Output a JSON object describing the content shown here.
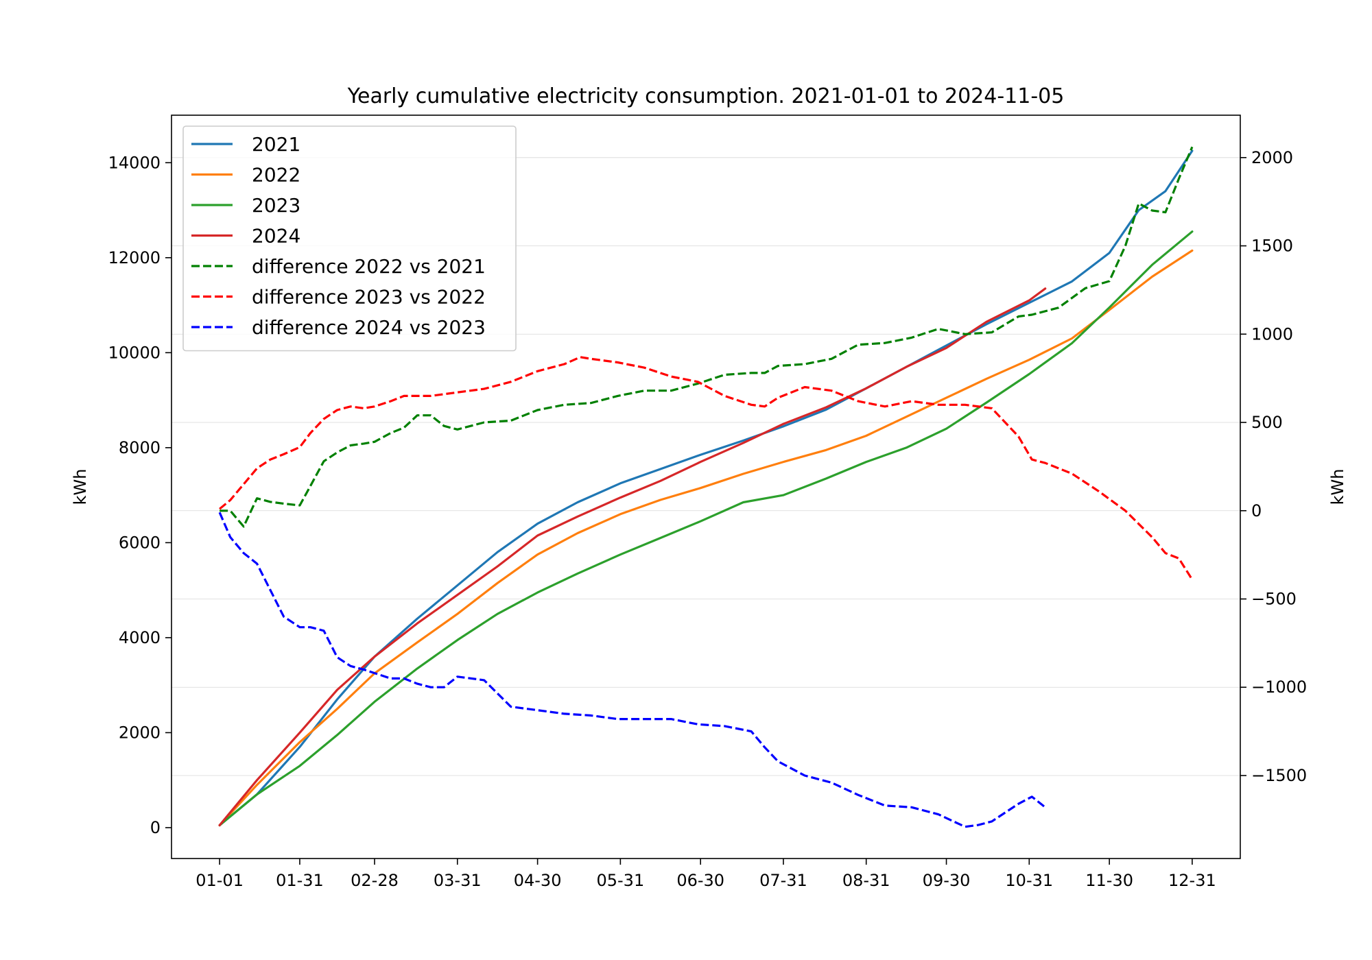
{
  "chart_data": {
    "type": "line",
    "title": "Yearly cumulative electricity consumption. 2021-01-01 to 2024-11-05",
    "xlabel": "",
    "ylabel_left": "kWh",
    "ylabel_right": "kWh",
    "x_unit": "day of year",
    "x_ticks": [
      {
        "label": "01-01",
        "day": 1
      },
      {
        "label": "01-31",
        "day": 31
      },
      {
        "label": "02-28",
        "day": 59
      },
      {
        "label": "03-31",
        "day": 90
      },
      {
        "label": "04-30",
        "day": 120
      },
      {
        "label": "05-31",
        "day": 151
      },
      {
        "label": "06-30",
        "day": 181
      },
      {
        "label": "07-31",
        "day": 212
      },
      {
        "label": "08-31",
        "day": 243
      },
      {
        "label": "09-30",
        "day": 273
      },
      {
        "label": "10-31",
        "day": 304
      },
      {
        "label": "11-30",
        "day": 334
      },
      {
        "label": "12-31",
        "day": 365
      }
    ],
    "xlim": [
      -17,
      383
    ],
    "ylim_left": [
      -650,
      15000
    ],
    "ylim_right": [
      -1970,
      2240
    ],
    "y_ticks_left": [
      0,
      2000,
      4000,
      6000,
      8000,
      10000,
      12000,
      14000
    ],
    "y_ticks_right": [
      -1500,
      -1000,
      -500,
      0,
      500,
      1000,
      1500,
      2000
    ],
    "y_tick_labels_right": [
      "−1500",
      "−1000",
      "−500",
      "0",
      "500",
      "1000",
      "1500",
      "2000"
    ],
    "grid": "horizontal lines at right-axis ticks",
    "legend_position": "upper-left",
    "series": [
      {
        "name": "2021",
        "axis": "left",
        "color": "#1f77b4",
        "style": "solid",
        "x": [
          1,
          15,
          31,
          45,
          59,
          75,
          90,
          105,
          120,
          135,
          151,
          166,
          181,
          197,
          212,
          228,
          243,
          258,
          273,
          288,
          304,
          320,
          334,
          345,
          355,
          365
        ],
        "y": [
          50,
          700,
          1700,
          2700,
          3600,
          4400,
          5100,
          5800,
          6400,
          6850,
          7250,
          7550,
          7850,
          8150,
          8450,
          8800,
          9250,
          9700,
          10150,
          10600,
          11050,
          11500,
          12100,
          13000,
          13400,
          14250
        ]
      },
      {
        "name": "2022",
        "axis": "left",
        "color": "#ff7f0e",
        "style": "solid",
        "x": [
          1,
          15,
          31,
          45,
          59,
          75,
          90,
          105,
          120,
          135,
          151,
          166,
          181,
          197,
          212,
          228,
          243,
          258,
          273,
          288,
          304,
          320,
          334,
          350,
          365
        ],
        "y": [
          50,
          900,
          1800,
          2500,
          3250,
          3900,
          4500,
          5150,
          5750,
          6200,
          6600,
          6900,
          7150,
          7450,
          7700,
          7950,
          8250,
          8650,
          9050,
          9450,
          9850,
          10300,
          10900,
          11600,
          12150
        ]
      },
      {
        "name": "2023",
        "axis": "left",
        "color": "#2ca02c",
        "style": "solid",
        "x": [
          1,
          15,
          31,
          45,
          59,
          75,
          90,
          105,
          120,
          135,
          151,
          166,
          181,
          197,
          212,
          228,
          243,
          258,
          273,
          288,
          304,
          320,
          334,
          350,
          365
        ],
        "y": [
          50,
          700,
          1300,
          1950,
          2650,
          3350,
          3950,
          4500,
          4950,
          5350,
          5750,
          6100,
          6450,
          6850,
          7000,
          7350,
          7700,
          8000,
          8400,
          8950,
          9550,
          10200,
          10950,
          11850,
          12550
        ]
      },
      {
        "name": "2024",
        "axis": "left",
        "color": "#d62728",
        "style": "solid",
        "x": [
          1,
          15,
          31,
          45,
          59,
          75,
          90,
          105,
          120,
          135,
          151,
          166,
          181,
          197,
          212,
          228,
          243,
          258,
          273,
          288,
          304,
          310
        ],
        "y": [
          50,
          1000,
          2000,
          2900,
          3600,
          4300,
          4900,
          5500,
          6150,
          6550,
          6950,
          7300,
          7700,
          8100,
          8500,
          8850,
          9250,
          9700,
          10100,
          10650,
          11100,
          11350
        ]
      },
      {
        "name": "difference 2022 vs 2021",
        "axis": "right",
        "color": "#008000",
        "style": "dashed",
        "x": [
          1,
          5,
          10,
          15,
          20,
          25,
          31,
          35,
          40,
          45,
          50,
          55,
          59,
          65,
          70,
          75,
          80,
          85,
          90,
          100,
          110,
          120,
          130,
          140,
          150,
          160,
          170,
          180,
          190,
          200,
          205,
          210,
          220,
          230,
          240,
          250,
          260,
          270,
          280,
          290,
          300,
          305,
          315,
          325,
          334,
          340,
          345,
          350,
          355,
          360,
          365
        ],
        "y": [
          0,
          0,
          -90,
          70,
          50,
          40,
          30,
          140,
          280,
          330,
          370,
          380,
          390,
          440,
          470,
          540,
          540,
          480,
          460,
          500,
          510,
          570,
          600,
          610,
          650,
          680,
          680,
          720,
          770,
          780,
          780,
          820,
          830,
          860,
          940,
          950,
          980,
          1030,
          1000,
          1010,
          1100,
          1110,
          1150,
          1260,
          1300,
          1500,
          1740,
          1700,
          1690,
          1880,
          2060
        ]
      },
      {
        "name": "difference 2023 vs 2022",
        "axis": "right",
        "color": "#ff0000",
        "style": "dashed",
        "x": [
          1,
          5,
          10,
          15,
          20,
          25,
          31,
          35,
          40,
          45,
          50,
          55,
          59,
          65,
          70,
          80,
          90,
          100,
          110,
          120,
          130,
          136,
          140,
          150,
          160,
          170,
          180,
          190,
          200,
          205,
          210,
          220,
          230,
          240,
          250,
          260,
          270,
          280,
          290,
          300,
          305,
          310,
          320,
          330,
          340,
          350,
          355,
          360,
          365
        ],
        "y": [
          10,
          60,
          150,
          240,
          290,
          320,
          360,
          440,
          520,
          570,
          590,
          580,
          590,
          620,
          650,
          650,
          670,
          690,
          730,
          790,
          830,
          870,
          860,
          840,
          810,
          760,
          730,
          650,
          600,
          590,
          640,
          700,
          680,
          620,
          590,
          620,
          600,
          600,
          580,
          420,
          290,
          270,
          210,
          110,
          0,
          -150,
          -240,
          -270,
          -390
        ]
      },
      {
        "name": "difference 2024 vs 2023",
        "axis": "right",
        "color": "#0000ff",
        "style": "dashed",
        "x": [
          1,
          5,
          10,
          15,
          20,
          25,
          31,
          35,
          40,
          45,
          50,
          55,
          59,
          65,
          70,
          75,
          80,
          85,
          90,
          100,
          110,
          120,
          130,
          140,
          150,
          160,
          170,
          180,
          190,
          200,
          205,
          210,
          220,
          230,
          240,
          250,
          260,
          270,
          280,
          285,
          290,
          300,
          305,
          310
        ],
        "y": [
          -10,
          -150,
          -240,
          -300,
          -450,
          -600,
          -660,
          -660,
          -680,
          -830,
          -880,
          -900,
          -920,
          -950,
          -950,
          -980,
          -1000,
          -1000,
          -940,
          -960,
          -1110,
          -1130,
          -1150,
          -1160,
          -1180,
          -1180,
          -1180,
          -1210,
          -1220,
          -1250,
          -1340,
          -1420,
          -1500,
          -1540,
          -1610,
          -1670,
          -1680,
          -1720,
          -1790,
          -1780,
          -1760,
          -1660,
          -1620,
          -1680
        ]
      }
    ]
  }
}
